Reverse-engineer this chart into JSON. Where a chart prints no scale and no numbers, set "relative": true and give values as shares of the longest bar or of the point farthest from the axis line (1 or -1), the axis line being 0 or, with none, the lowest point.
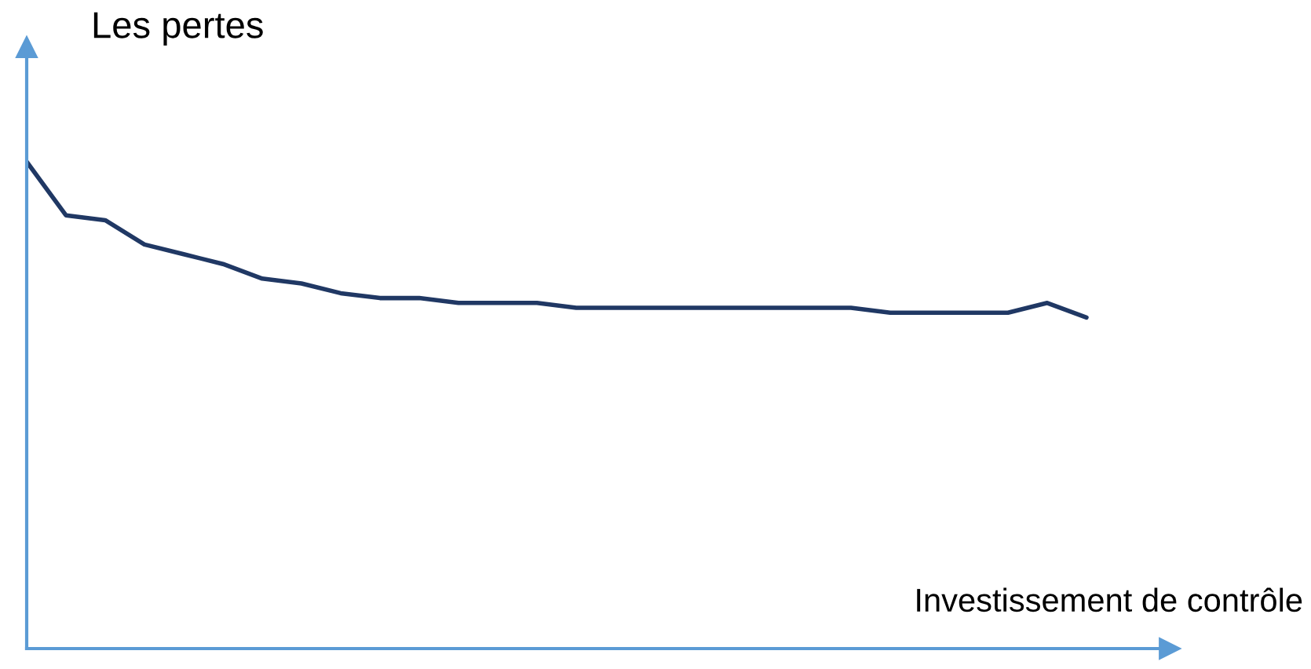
{
  "chart_data": {
    "type": "line",
    "relative": true,
    "xlabel": "Investissement de contrôle",
    "ylabel": "Les pertes",
    "categories": [
      null,
      null,
      null,
      null,
      null,
      null,
      null,
      null,
      null,
      null,
      null,
      null,
      null,
      null,
      null,
      null,
      null,
      null,
      null,
      null,
      null,
      null,
      null,
      null,
      null,
      null,
      null,
      null
    ],
    "series": [
      {
        "color": "#203864",
        "values": [
          1.0,
          0.89,
          0.88,
          0.83,
          0.81,
          0.79,
          0.76,
          0.75,
          0.73,
          0.72,
          0.72,
          0.71,
          0.71,
          0.71,
          0.7,
          0.7,
          0.7,
          0.7,
          0.7,
          0.7,
          0.7,
          0.7,
          0.69,
          0.69,
          0.69,
          0.69,
          0.71,
          0.68
        ]
      }
    ],
    "legend": false,
    "tick_labels": false
  }
}
